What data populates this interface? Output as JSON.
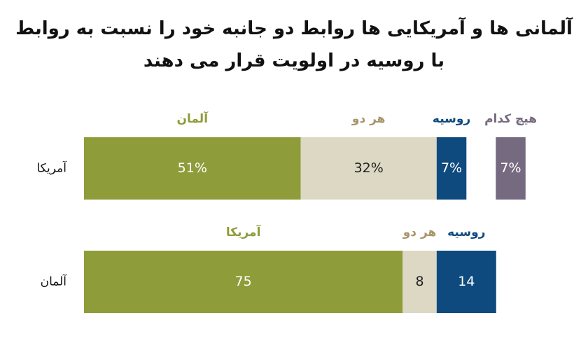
{
  "chart_data": [
    {
      "type": "bar",
      "title": "آلمانی ها و آمریکایی ها روابط دو جانبه خود را نسبت به روابط با روسیه در اولویت قرار می دهند",
      "categories": [
        "آمریکا"
      ],
      "series": [
        {
          "name": "آلمان",
          "color": "#8f9c3a",
          "values": [
            51
          ],
          "value_labels": [
            "51%"
          ]
        },
        {
          "name": "هر دو",
          "color": "#dcd8c4",
          "values": [
            32
          ],
          "value_labels": [
            "32%"
          ]
        },
        {
          "name": "روسیه",
          "color": "#0f4a7f",
          "values": [
            7
          ],
          "value_labels": [
            "7%"
          ]
        },
        {
          "name": "هیچ کدام",
          "color": "#766a80",
          "values": [
            7
          ],
          "value_labels": [
            "7%"
          ],
          "stacked": false
        }
      ]
    },
    {
      "type": "bar",
      "categories": [
        "آلمان"
      ],
      "series": [
        {
          "name": "آمریکا",
          "color": "#8f9c3a",
          "values": [
            75
          ]
        },
        {
          "name": "هر دو",
          "color": "#dcd8c4",
          "values": [
            8
          ]
        },
        {
          "name": "روسیه",
          "color": "#0f4a7f",
          "values": [
            14
          ]
        }
      ]
    }
  ]
}
